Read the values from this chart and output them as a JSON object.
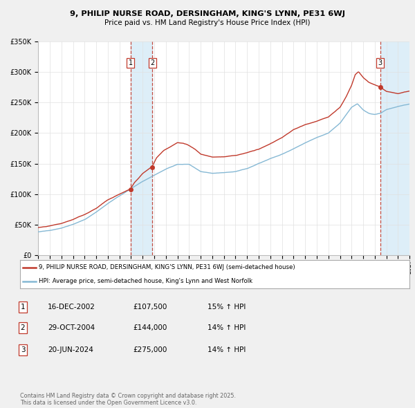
{
  "title1": "9, PHILIP NURSE ROAD, DERSINGHAM, KING'S LYNN, PE31 6WJ",
  "title2": "Price paid vs. HM Land Registry's House Price Index (HPI)",
  "legend_red": "9, PHILIP NURSE ROAD, DERSINGHAM, KING'S LYNN, PE31 6WJ (semi-detached house)",
  "legend_blue": "HPI: Average price, semi-detached house, King's Lynn and West Norfolk",
  "footer": "Contains HM Land Registry data © Crown copyright and database right 2025.\nThis data is licensed under the Open Government Licence v3.0.",
  "sale_markers": [
    {
      "num": "1",
      "date_num": 2002.96,
      "price": 107500,
      "label": "16-DEC-2002",
      "amount": "£107,500",
      "pct": "15% ↑ HPI"
    },
    {
      "num": "2",
      "date_num": 2004.83,
      "price": 144000,
      "label": "29-OCT-2004",
      "amount": "£144,000",
      "pct": "14% ↑ HPI"
    },
    {
      "num": "3",
      "date_num": 2024.47,
      "price": 275000,
      "label": "20-JUN-2024",
      "amount": "£275,000",
      "pct": "14% ↑ HPI"
    }
  ],
  "red_color": "#c0392b",
  "blue_color": "#85b8d4",
  "vspan_color": "#ddeef8",
  "hatch_color": "#ddeef8",
  "background_color": "#f0f0f0",
  "plot_bg": "#ffffff",
  "grid_color": "#e0e0e0",
  "ylim": [
    0,
    350000
  ],
  "xlim_start": 1995,
  "xlim_end": 2027,
  "hpi_x": [
    1995,
    1996,
    1997,
    1998,
    1999,
    2000,
    2001,
    2002,
    2003,
    2004,
    2005,
    2006,
    2007,
    2008,
    2009,
    2010,
    2011,
    2012,
    2013,
    2014,
    2015,
    2016,
    2017,
    2018,
    2019,
    2020,
    2021,
    2022,
    2022.5,
    2023,
    2023.5,
    2024,
    2024.5,
    2025,
    2026,
    2027
  ],
  "hpi_y": [
    38000,
    40000,
    44000,
    50000,
    58000,
    70000,
    84000,
    96000,
    108000,
    120000,
    130000,
    140000,
    148000,
    148000,
    136000,
    133000,
    134000,
    136000,
    141000,
    150000,
    158000,
    165000,
    174000,
    184000,
    193000,
    200000,
    216000,
    242000,
    248000,
    238000,
    232000,
    230000,
    232000,
    238000,
    243000,
    247000
  ],
  "prop_x": [
    1995,
    1996,
    1997,
    1998,
    1999,
    2000,
    2001,
    2002.96,
    2003.3,
    2004.0,
    2004.83,
    2005.2,
    2005.8,
    2006.5,
    2007.0,
    2007.5,
    2008,
    2008.5,
    2009,
    2010,
    2011,
    2012,
    2013,
    2014,
    2015,
    2016,
    2017,
    2018,
    2019,
    2020,
    2021.0,
    2021.5,
    2022.0,
    2022.3,
    2022.6,
    2023.0,
    2023.5,
    2024.47,
    2025.0,
    2026.0,
    2027.0
  ],
  "prop_y": [
    45000,
    48000,
    52000,
    58000,
    66000,
    76000,
    90000,
    107500,
    118000,
    132000,
    144000,
    158000,
    170000,
    178000,
    183000,
    182000,
    178000,
    172000,
    164000,
    160000,
    160000,
    163000,
    167000,
    173000,
    182000,
    192000,
    205000,
    213000,
    219000,
    226000,
    242000,
    258000,
    278000,
    295000,
    300000,
    290000,
    282000,
    275000,
    268000,
    264000,
    268000
  ]
}
